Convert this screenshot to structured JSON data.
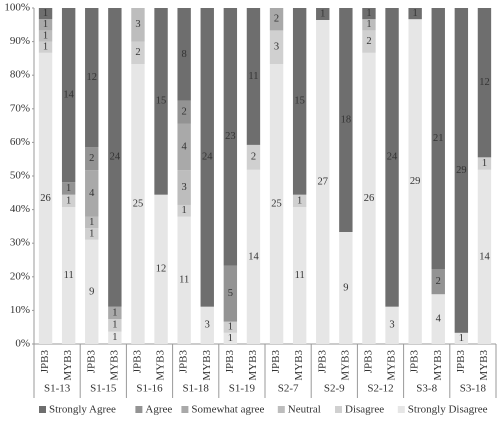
{
  "chart_data": {
    "type": "stacked-percent-bar",
    "groups": [
      "S1-13",
      "S1-15",
      "S1-16",
      "S1-18",
      "S1-19",
      "S2-7",
      "S2-9",
      "S2-12",
      "S3-8",
      "S3-18"
    ],
    "categories": [
      "JPB3",
      "MYB3",
      "JPB3",
      "MYB3",
      "JPB3",
      "MYB3",
      "JPB3",
      "MYB3",
      "JPB3",
      "MYB3",
      "JPB3",
      "MYB3",
      "JPB3",
      "MYB3",
      "JPB3",
      "MYB3",
      "JPB3",
      "MYB3",
      "JPB3",
      "MYB3"
    ],
    "series": [
      {
        "name": "Strongly Disagree",
        "color": "#e6e6e6",
        "values": [
          26,
          11,
          9,
          1,
          25,
          12,
          11,
          3,
          1,
          14,
          25,
          11,
          27,
          9,
          26,
          3,
          29,
          4,
          1,
          14
        ]
      },
      {
        "name": "Disagree",
        "color": "#d0d0d0",
        "values": [
          1,
          1,
          1,
          1,
          2,
          0,
          1,
          0,
          1,
          2,
          3,
          1,
          0,
          0,
          2,
          0,
          0,
          0,
          0,
          1
        ]
      },
      {
        "name": "Neutral",
        "color": "#bdbdbd",
        "values": [
          1,
          0,
          1,
          0,
          3,
          0,
          3,
          0,
          0,
          0,
          0,
          0,
          0,
          0,
          1,
          0,
          0,
          0,
          0,
          0
        ]
      },
      {
        "name": "Somewhat agree",
        "color": "#a9a9a9",
        "values": [
          1,
          0,
          4,
          1,
          0,
          0,
          4,
          0,
          0,
          0,
          2,
          0,
          0,
          0,
          0,
          0,
          0,
          0,
          0,
          0
        ]
      },
      {
        "name": "Agree",
        "color": "#939393",
        "values": [
          0,
          1,
          2,
          0,
          0,
          0,
          2,
          0,
          5,
          0,
          0,
          0,
          0,
          0,
          0,
          0,
          0,
          2,
          0,
          0
        ]
      },
      {
        "name": "Strongly Agree",
        "color": "#6e6e6e",
        "values": [
          1,
          14,
          12,
          24,
          0,
          15,
          8,
          24,
          23,
          11,
          0,
          15,
          1,
          18,
          1,
          24,
          1,
          21,
          29,
          12
        ]
      }
    ],
    "ylim": [
      0,
      100
    ],
    "yticks": [
      {
        "value": 0,
        "label": "0%"
      },
      {
        "value": 10,
        "label": "10%"
      },
      {
        "value": 20,
        "label": "20%"
      },
      {
        "value": 30,
        "label": "30%"
      },
      {
        "value": 40,
        "label": "40%"
      },
      {
        "value": 50,
        "label": "50%"
      },
      {
        "value": 60,
        "label": "60%"
      },
      {
        "value": 70,
        "label": "70%"
      },
      {
        "value": 80,
        "label": "80%"
      },
      {
        "value": 90,
        "label": "90%"
      },
      {
        "value": 100,
        "label": "100%"
      }
    ],
    "legend": "bottom"
  }
}
